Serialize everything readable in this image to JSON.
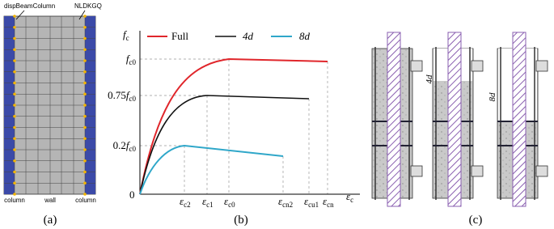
{
  "panel_a": {
    "label": "(a)",
    "top_labels": [
      "dispBeamColumn",
      "NLDKGQ"
    ],
    "bottom_labels": [
      "column",
      "wall",
      "column"
    ]
  },
  "panel_b": {
    "label": "(b)",
    "origin": "0",
    "y_axis": {
      "symbol": "f",
      "sub": "c"
    },
    "x_axis": {
      "symbol": "ε",
      "sub": "c"
    },
    "legend": [
      "Full",
      "4d",
      "8d"
    ],
    "y_labels": [
      {
        "prefix": "",
        "symbol": "f",
        "sub": "c0"
      },
      {
        "prefix": "0.75",
        "symbol": "f",
        "sub": "c0"
      },
      {
        "prefix": "0.2",
        "symbol": "f",
        "sub": "c0"
      }
    ],
    "x_labels": [
      {
        "symbol": "ε",
        "sub": "c2"
      },
      {
        "symbol": "ε",
        "sub": "c1"
      },
      {
        "symbol": "ε",
        "sub": "c0"
      },
      {
        "symbol": "ε",
        "sub": "cn2"
      },
      {
        "symbol": "ε",
        "sub": "cu1"
      },
      {
        "symbol": "ε",
        "sub": "cn"
      }
    ]
  },
  "panel_c": {
    "label": "(c)",
    "dimensions": [
      "4d",
      "8d"
    ]
  }
}
